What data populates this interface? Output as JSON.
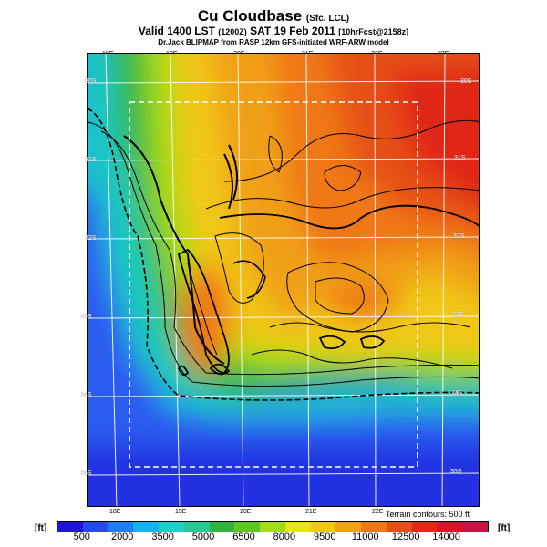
{
  "header": {
    "title": "Cu Cloudbase",
    "title_note": "(Sfc. LCL)",
    "valid": "Valid 1400 LST",
    "valid_code": "(1200Z)",
    "date": "SAT 19 Feb 2011",
    "run_note": "[10hrFcst@2158z]",
    "source": "Dr.Jack BLIPMAP from RASP 12km GFS-initiated WRF-ARW model"
  },
  "map": {
    "lon_labels_top": [
      "18E",
      "19E",
      "20E",
      "21E",
      "22E",
      "23E"
    ],
    "lon_labels_bottom": [
      "18E",
      "19E",
      "20E",
      "21E",
      "22E"
    ],
    "lat_labels_left": [
      "30S",
      "31S",
      "32S",
      "33S",
      "34S",
      "35S"
    ],
    "lat_labels_right": [
      "30S",
      "31S",
      "32S",
      "33S",
      "34S",
      "35S"
    ],
    "terrain_note": "Terrain contours: 500 ft"
  },
  "colorbar": {
    "unit_left": "[ft]",
    "unit_right": "[ft]",
    "labels": [
      "500",
      "2000",
      "3500",
      "5000",
      "6500",
      "8000",
      "9500",
      "11000",
      "12500",
      "14000"
    ],
    "colors": [
      "#1e14d8",
      "#2848f0",
      "#1e7cf8",
      "#14b4f0",
      "#18d2c8",
      "#28c890",
      "#30b43c",
      "#5cc81e",
      "#a0dc18",
      "#e6e614",
      "#f0c814",
      "#f0a014",
      "#f07814",
      "#e65014",
      "#e02814",
      "#d81428",
      "#c81446"
    ]
  }
}
